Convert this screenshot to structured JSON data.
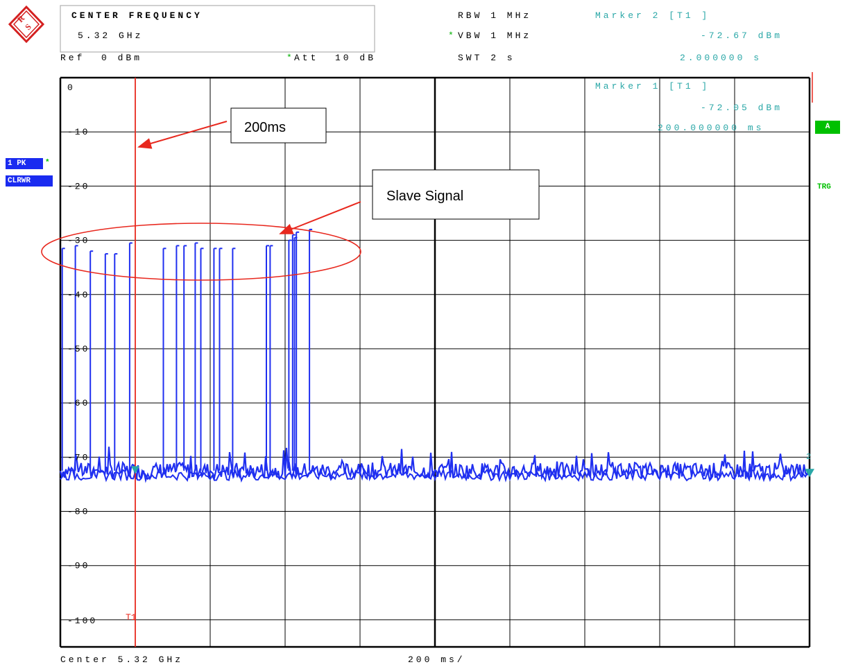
{
  "header": {
    "center_frequency_label": "CENTER FREQUENCY",
    "center_frequency_value": "5.32 GHz",
    "rbw": "RBW 1 MHz",
    "vbw_star": "*",
    "vbw": "VBW 1 MHz",
    "swt": "SWT 2 s",
    "marker2_title": "Marker 2 [T1 ]",
    "marker2_level": "-72.67 dBm",
    "marker2_time": "2.000000 s",
    "ref": "Ref  0 dBm",
    "att_star": "*",
    "att": "Att  10 dB"
  },
  "marker1": {
    "title": "Marker 1 [T1 ]",
    "level": "-72.05 dBm",
    "time": "200.000000 ms",
    "trace_label": "T1",
    "marker2_number": "2"
  },
  "side": {
    "trace_mode_1": "1 PK",
    "trace_mode_star": "*",
    "trace_mode_2": "CLRWR",
    "a_badge": "A",
    "trg_badge": "TRG"
  },
  "footer": {
    "center": "Center 5.32 GHz",
    "span": "200 ms/"
  },
  "annotations": {
    "time_callout": "200ms",
    "signal_callout": "Slave Signal"
  },
  "colors": {
    "trace": "#1f2ff0",
    "marker_line": "#e8281e",
    "marker_text": "#2aa7a7",
    "grid": "#000000",
    "badge_bg": "#1a2bf0",
    "badge_green": "#00c000"
  },
  "chart_data": {
    "type": "line",
    "xlabel": "",
    "ylabel": "",
    "xlim": [
      0,
      2.0
    ],
    "ylim": [
      -105,
      0
    ],
    "grid": true,
    "y_ticks": [
      {
        "value": 0,
        "label": "0"
      },
      {
        "value": -10,
        "label": "-10"
      },
      {
        "value": -20,
        "label": "-20"
      },
      {
        "value": -30,
        "label": "-30"
      },
      {
        "value": -40,
        "label": "-40"
      },
      {
        "value": -50,
        "label": "-50"
      },
      {
        "value": -60,
        "label": "-60"
      },
      {
        "value": -70,
        "label": "-70"
      },
      {
        "value": -80,
        "label": "-80"
      },
      {
        "value": -90,
        "label": "-90"
      },
      {
        "value": -100,
        "label": "-100"
      }
    ],
    "noise_floor_dBm": -72.5,
    "series": [
      {
        "x_s": [
          0.005,
          0.04,
          0.08,
          0.12,
          0.145,
          0.185,
          0.275,
          0.31,
          0.33,
          0.36,
          0.375,
          0.41,
          0.425,
          0.46,
          0.55,
          0.56,
          0.61,
          0.62,
          0.625,
          0.63,
          0.665
        ],
        "peak_dBm": [
          -31.5,
          -31.0,
          -32.0,
          -32.5,
          -32.5,
          -30.5,
          -31.5,
          -31.0,
          -31.0,
          -30.5,
          -31.5,
          -31.5,
          -31.5,
          -31.5,
          -31.0,
          -31.0,
          -30.0,
          -29.0,
          -29.5,
          -28.5,
          -28.0
        ]
      }
    ],
    "markers": [
      {
        "name": "T1",
        "x_s": 0.2,
        "y_dBm": -72.05
      },
      {
        "name": "2",
        "x_s": 2.0,
        "y_dBm": -72.67
      }
    ]
  }
}
